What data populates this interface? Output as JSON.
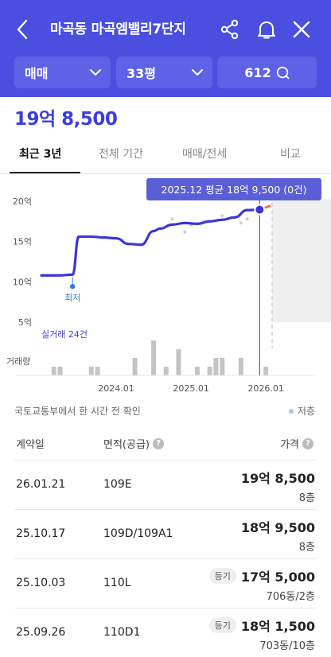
{
  "header": {
    "title": "마곡동 마곡엠밸리7단지",
    "filters": {
      "trade_type": "매매",
      "size": "33평",
      "comments": "612"
    }
  },
  "price": "19억 8,500",
  "tabs": [
    "최근 3년",
    "전체 기간",
    "매매/전세",
    "비교"
  ],
  "chart_data": {
    "type": "line",
    "y_tick_labels": [
      "20억",
      "15억",
      "10억",
      "5억"
    ],
    "x_tick_labels": [
      "2024.01",
      "2025.01",
      "2026.01"
    ],
    "tooltip": "2025.12 평균 18억 9,500 (0건)",
    "min_label": "최저",
    "deal_count_label": "실거래 24건",
    "volume_label": "거래량",
    "ylim": [
      3,
      21
    ],
    "xlim": [
      "2023-01",
      "2026-03"
    ],
    "series": [
      {
        "x": [
          "2023-01",
          "2023-04",
          "2023-06",
          "2023-07",
          "2023-09",
          "2023-11",
          "2024-01",
          "2024-03",
          "2024-05",
          "2024-07",
          "2024-08",
          "2024-10",
          "2024-12",
          "2025-02",
          "2025-04",
          "2025-06",
          "2025-08",
          "2025-10",
          "2025-12"
        ],
        "y": [
          10.8,
          10.8,
          10.9,
          15.6,
          15.6,
          15.5,
          15.4,
          14.7,
          14.6,
          16.3,
          16.6,
          17.1,
          17.3,
          17.2,
          17.5,
          17.7,
          18.0,
          18.9,
          18.95
        ]
      }
    ],
    "trades_x": [
      "2024-10",
      "2024-12",
      "2025-01",
      "2025-03",
      "2025-06",
      "2025-09",
      "2025-10"
    ],
    "trades_y": [
      17.8,
      16.2,
      17.0,
      17.5,
      18.2,
      17.3,
      17.8
    ],
    "volume": [
      {
        "x": "2023-03",
        "v": 1
      },
      {
        "x": "2023-04",
        "v": 1
      },
      {
        "x": "2023-09",
        "v": 1
      },
      {
        "x": "2023-10",
        "v": 1
      },
      {
        "x": "2024-04",
        "v": 2
      },
      {
        "x": "2024-07",
        "v": 4
      },
      {
        "x": "2024-09",
        "v": 1
      },
      {
        "x": "2024-11",
        "v": 3
      },
      {
        "x": "2025-02",
        "v": 1
      },
      {
        "x": "2025-04",
        "v": 1
      },
      {
        "x": "2025-05",
        "v": 2
      },
      {
        "x": "2025-06",
        "v": 2
      },
      {
        "x": "2025-09",
        "v": 2
      },
      {
        "x": "2026-01",
        "v": 1
      }
    ],
    "colors": {
      "line": "#3b36d8",
      "forecast_bg": "#f0f0f0",
      "tooltip_bg": "#5b5fd6",
      "volume": "#c4c4c4",
      "trade_dot": "#cfcfcf",
      "min_dot": "#2b7de9"
    }
  },
  "source_text": "국토교통부에서 한 시간 전 확인",
  "legend_low": "저층",
  "table": {
    "headers": [
      "계약일",
      "면적(공급)",
      "가격"
    ],
    "rows": [
      {
        "date": "26.01.21",
        "area": "109E",
        "badge": "",
        "price": "19억 8,500",
        "floor": "8층"
      },
      {
        "date": "25.10.17",
        "area": "109D/109A1",
        "badge": "",
        "price": "18억 9,500",
        "floor": "8층"
      },
      {
        "date": "25.10.03",
        "area": "110L",
        "badge": "등기",
        "price": "17억 5,000",
        "floor": "706동/2층"
      },
      {
        "date": "25.09.26",
        "area": "110D1",
        "badge": "등기",
        "price": "18억 1,500",
        "floor": "703동/10층"
      }
    ]
  }
}
